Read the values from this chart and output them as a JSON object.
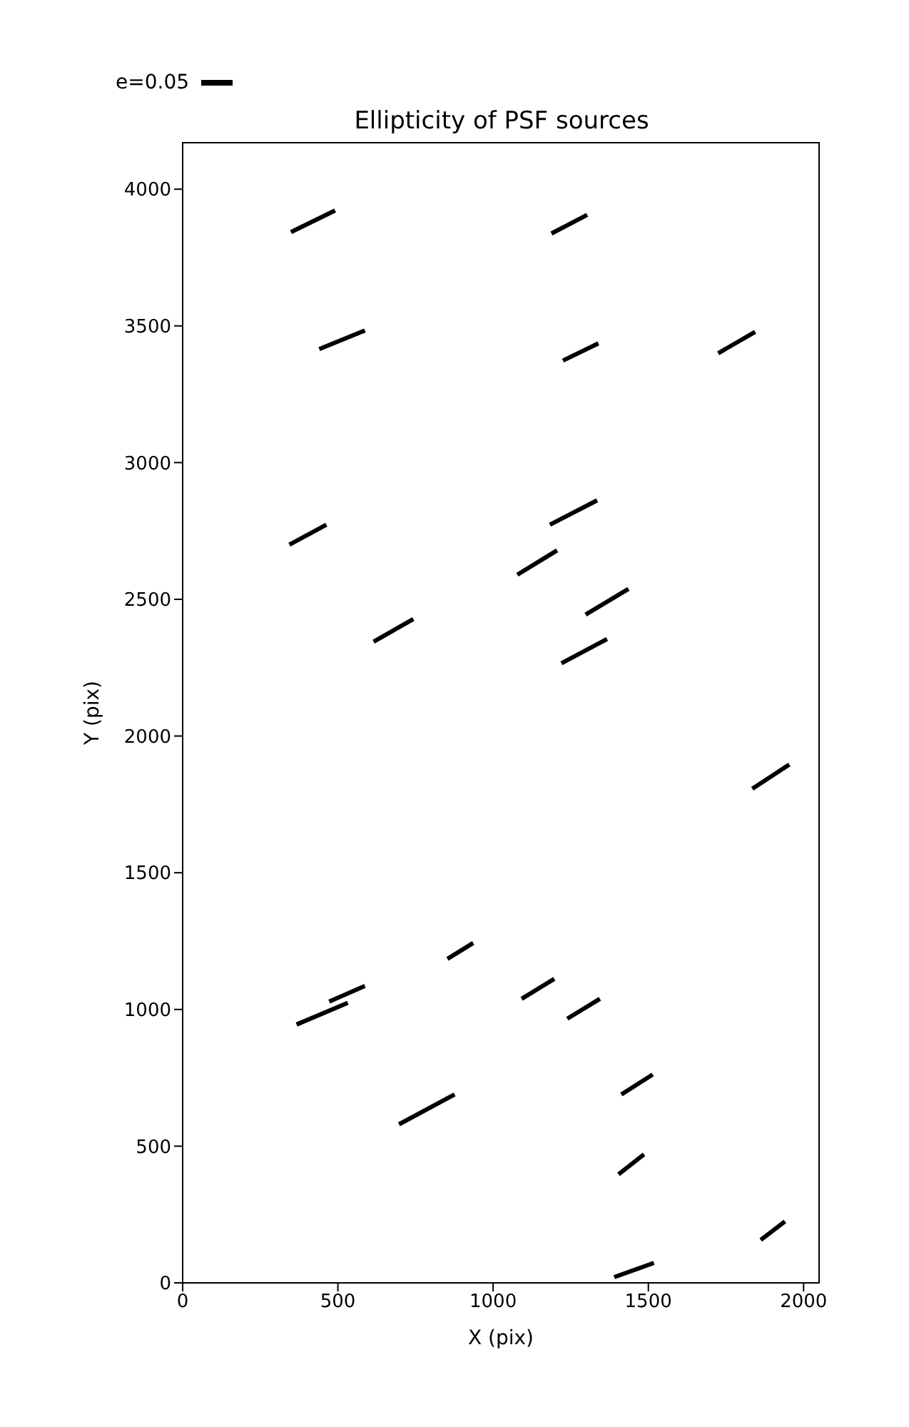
{
  "chart_data": {
    "type": "line",
    "title": "Ellipticity of PSF sources",
    "xlabel": "X (pix)",
    "ylabel": "Y (pix)",
    "annotations": [
      "e=0.05"
    ],
    "xlim": [
      0,
      2050
    ],
    "ylim": [
      0,
      4170
    ],
    "xticks": [
      0,
      500,
      1000,
      1500,
      2000
    ],
    "yticks": [
      0,
      500,
      1000,
      1500,
      2000,
      2500,
      3000,
      3500,
      4000
    ],
    "grid": false,
    "marker": "none",
    "line_style": "solid",
    "series": [
      {
        "color": "#000000",
        "x": [
          349,
          491
        ],
        "values": [
          3843,
          3922
        ]
      },
      {
        "color": "#000000",
        "x": [
          1188,
          1303
        ],
        "values": [
          3838,
          3906
        ]
      },
      {
        "color": "#000000",
        "x": [
          440,
          587
        ],
        "values": [
          3415,
          3483
        ]
      },
      {
        "color": "#000000",
        "x": [
          1225,
          1339
        ],
        "values": [
          3373,
          3436
        ]
      },
      {
        "color": "#000000",
        "x": [
          1725,
          1844
        ],
        "values": [
          3400,
          3478
        ]
      },
      {
        "color": "#000000",
        "x": [
          344,
          463
        ],
        "values": [
          2700,
          2773
        ]
      },
      {
        "color": "#000000",
        "x": [
          1183,
          1335
        ],
        "values": [
          2773,
          2862
        ]
      },
      {
        "color": "#000000",
        "x": [
          1078,
          1206
        ],
        "values": [
          2590,
          2679
        ]
      },
      {
        "color": "#000000",
        "x": [
          1298,
          1436
        ],
        "values": [
          2444,
          2538
        ]
      },
      {
        "color": "#000000",
        "x": [
          1220,
          1367
        ],
        "values": [
          2266,
          2355
        ]
      },
      {
        "color": "#000000",
        "x": [
          615,
          743
        ],
        "values": [
          2345,
          2428
        ]
      },
      {
        "color": "#000000",
        "x": [
          1835,
          1954
        ],
        "values": [
          1807,
          1896
        ]
      },
      {
        "color": "#000000",
        "x": [
          853,
          936
        ],
        "values": [
          1185,
          1243
        ]
      },
      {
        "color": "#000000",
        "x": [
          472,
          587
        ],
        "values": [
          1029,
          1086
        ]
      },
      {
        "color": "#000000",
        "x": [
          367,
          532
        ],
        "values": [
          945,
          1024
        ]
      },
      {
        "color": "#000000",
        "x": [
          1092,
          1197
        ],
        "values": [
          1039,
          1112
        ]
      },
      {
        "color": "#000000",
        "x": [
          1239,
          1344
        ],
        "values": [
          966,
          1039
        ]
      },
      {
        "color": "#000000",
        "x": [
          697,
          876
        ],
        "values": [
          580,
          689
        ]
      },
      {
        "color": "#000000",
        "x": [
          1413,
          1514
        ],
        "values": [
          689,
          762
        ]
      },
      {
        "color": "#000000",
        "x": [
          1404,
          1486
        ],
        "values": [
          397,
          470
        ]
      },
      {
        "color": "#000000",
        "x": [
          1862,
          1940
        ],
        "values": [
          157,
          225
        ]
      },
      {
        "color": "#000000",
        "x": [
          1390,
          1518
        ],
        "values": [
          21,
          73
        ]
      }
    ]
  }
}
